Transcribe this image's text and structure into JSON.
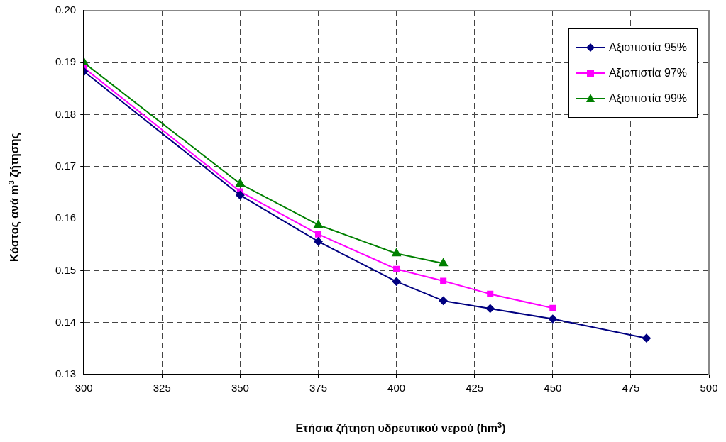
{
  "chart_data": {
    "type": "line",
    "xlabel": "Ετήσια ζήτηση υδρευτικού νερού (hm$^{3}$)",
    "ylabel": "Κόστος ανά m$^{3}$ ζήτησης",
    "xlim": [
      300,
      500
    ],
    "xticks": [
      300,
      325,
      350,
      375,
      400,
      425,
      450,
      475,
      500
    ],
    "ylim": [
      0.13,
      0.2
    ],
    "yticks": [
      0.13,
      0.14,
      0.15,
      0.16,
      0.17,
      0.18,
      0.19,
      {
        "value": 0.2,
        "label": "0.20"
      }
    ],
    "grid": true,
    "legend": "top right",
    "line_style": "solid",
    "series": [
      {
        "name": "Αξιοπιστία 95%",
        "color": "#000080",
        "marker": "diamond",
        "x": [
          300,
          350,
          375,
          400,
          415,
          430,
          450,
          480
        ],
        "values": [
          0.1883,
          0.1645,
          0.1556,
          0.1479,
          0.1442,
          0.1427,
          0.1407,
          0.137
        ]
      },
      {
        "name": "Αξιοπιστία 97%",
        "color": "#ff00ff",
        "marker": "square",
        "x": [
          300,
          350,
          375,
          400,
          415,
          430,
          450
        ],
        "values": [
          0.189,
          0.1652,
          0.157,
          0.1503,
          0.148,
          0.1455,
          0.1428
        ]
      },
      {
        "name": "Αξιοπιστία 99%",
        "color": "#008000",
        "marker": "triangle",
        "x": [
          300,
          350,
          375,
          400,
          415
        ],
        "values": [
          0.19,
          0.1667,
          0.1588,
          0.1533,
          0.1514
        ]
      }
    ]
  }
}
